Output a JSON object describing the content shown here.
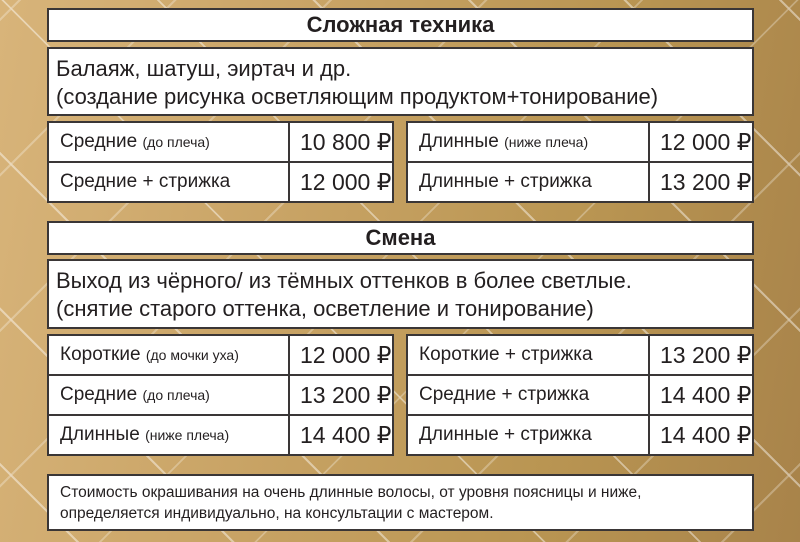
{
  "section1": {
    "title": "Сложная техника",
    "desc_line1": "Балаяж, шатуш, эиртач и др.",
    "desc_line2": "(создание рисунка осветляющим продуктом+тонирование)",
    "left": [
      {
        "label": "Средние",
        "note": "(до плеча)",
        "price": "10 800 ₽"
      },
      {
        "label": "Средние + стрижка",
        "note": "",
        "price": "12 000 ₽"
      }
    ],
    "right": [
      {
        "label": "Длинные",
        "note": "(ниже плеча)",
        "price": "12 000 ₽"
      },
      {
        "label": "Длинные + стрижка",
        "note": "",
        "price": "13 200 ₽"
      }
    ]
  },
  "section2": {
    "title": "Смена",
    "desc_line1": "Выход из чёрного/ из тёмных оттенков в более светлые.",
    "desc_line2": "(снятие старого оттенка, осветление и тонирование)",
    "left": [
      {
        "label": "Короткие",
        "note": "(до мочки уха)",
        "price": "12 000 ₽"
      },
      {
        "label": "Средние",
        "note": "(до плеча)",
        "price": "13 200 ₽"
      },
      {
        "label": "Длинные",
        "note": "(ниже плеча)",
        "price": "14 400 ₽"
      }
    ],
    "right": [
      {
        "label": "Короткие + стрижка",
        "note": "",
        "price": "13 200 ₽"
      },
      {
        "label": "Средние + стрижка",
        "note": "",
        "price": "14 400 ₽"
      },
      {
        "label": "Длинные + стрижка",
        "note": "",
        "price": "14 400 ₽"
      }
    ]
  },
  "footer_note": {
    "line1": "Стоимость окрашивания на очень длинные волосы, от уровня поясницы и ниже,",
    "line2": "определяется индивидуально, на консультации с мастером."
  }
}
